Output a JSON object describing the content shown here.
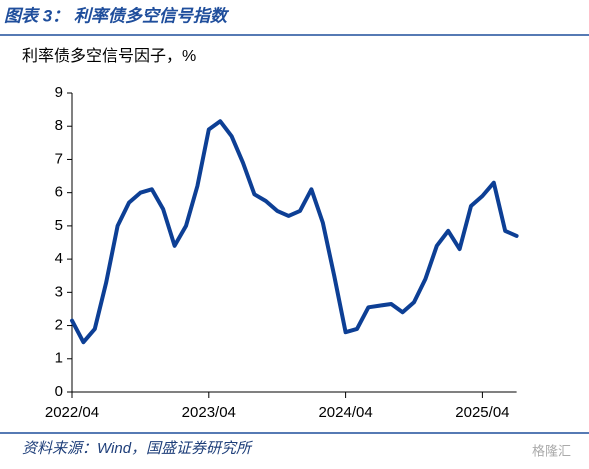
{
  "chart_data": {
    "type": "line",
    "title": "图表 3：  利率债多空信号指数",
    "subtitle": "利率债多空信号因子，%",
    "source": "资料来源：Wind，国盛证券研究所",
    "watermark": "格隆汇",
    "color": "#0d3f95",
    "categories": [
      "2022/04",
      null,
      null,
      null,
      null,
      null,
      null,
      null,
      null,
      null,
      null,
      null,
      "2023/04",
      null,
      null,
      null,
      null,
      null,
      null,
      null,
      null,
      null,
      null,
      null,
      "2024/04",
      null,
      null,
      null,
      null,
      null,
      null,
      null,
      null,
      null,
      null,
      null,
      "2025/04",
      null,
      null,
      null
    ],
    "values": [
      2.15,
      1.5,
      1.9,
      3.3,
      5.0,
      5.7,
      6.0,
      6.1,
      5.5,
      4.4,
      5.0,
      6.2,
      7.9,
      8.15,
      7.7,
      6.9,
      5.95,
      5.75,
      5.45,
      5.3,
      5.45,
      6.1,
      5.1,
      3.5,
      1.8,
      1.9,
      2.55,
      2.6,
      2.65,
      2.4,
      2.7,
      3.4,
      4.4,
      4.85,
      4.3,
      5.6,
      5.9,
      6.3,
      4.85,
      4.7
    ],
    "ylim": [
      0,
      9
    ],
    "yticks": [
      0,
      1,
      2,
      3,
      4,
      5,
      6,
      7,
      8,
      9
    ]
  }
}
